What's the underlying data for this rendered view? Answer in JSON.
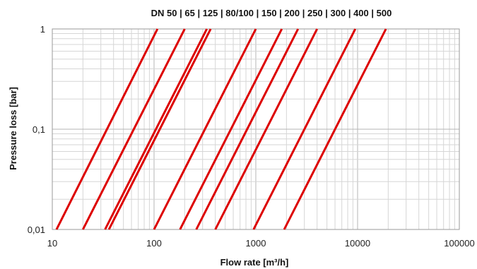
{
  "chart_data": {
    "type": "line",
    "title": "DN 50 | 65 | 125 | 80/100 | 150 | 200 | 250 | 300 | 400 | 500",
    "xlabel": "Flow rate [m³/h]",
    "ylabel": "Pressure loss [bar]",
    "x_scale": "log",
    "y_scale": "log",
    "xlim": [
      10,
      100000
    ],
    "ylim": [
      0.01,
      1
    ],
    "x_ticks": [
      10,
      100,
      1000,
      10000,
      100000
    ],
    "x_tick_labels": [
      "10",
      "100",
      "1000",
      "10000",
      "100000"
    ],
    "y_ticks": [
      0.01,
      0.1,
      1
    ],
    "y_tick_labels": [
      "0,01",
      "0,1",
      "1"
    ],
    "grid": true,
    "line_color": "#dd0000",
    "series": [
      {
        "x": [
          11,
          108
        ],
        "y": [
          0.01,
          1
        ]
      },
      {
        "x": [
          20,
          200
        ],
        "y": [
          0.01,
          1
        ]
      },
      {
        "x": [
          33,
          330
        ],
        "y": [
          0.01,
          1
        ]
      },
      {
        "x": [
          36,
          360
        ],
        "y": [
          0.01,
          1
        ]
      },
      {
        "x": [
          100,
          1000
        ],
        "y": [
          0.01,
          1
        ]
      },
      {
        "x": [
          180,
          1800
        ],
        "y": [
          0.01,
          1
        ]
      },
      {
        "x": [
          260,
          2600
        ],
        "y": [
          0.01,
          1
        ]
      },
      {
        "x": [
          400,
          4000
        ],
        "y": [
          0.01,
          1
        ]
      },
      {
        "x": [
          950,
          9500
        ],
        "y": [
          0.01,
          1
        ]
      },
      {
        "x": [
          1900,
          19000
        ],
        "y": [
          0.01,
          1
        ]
      }
    ]
  }
}
